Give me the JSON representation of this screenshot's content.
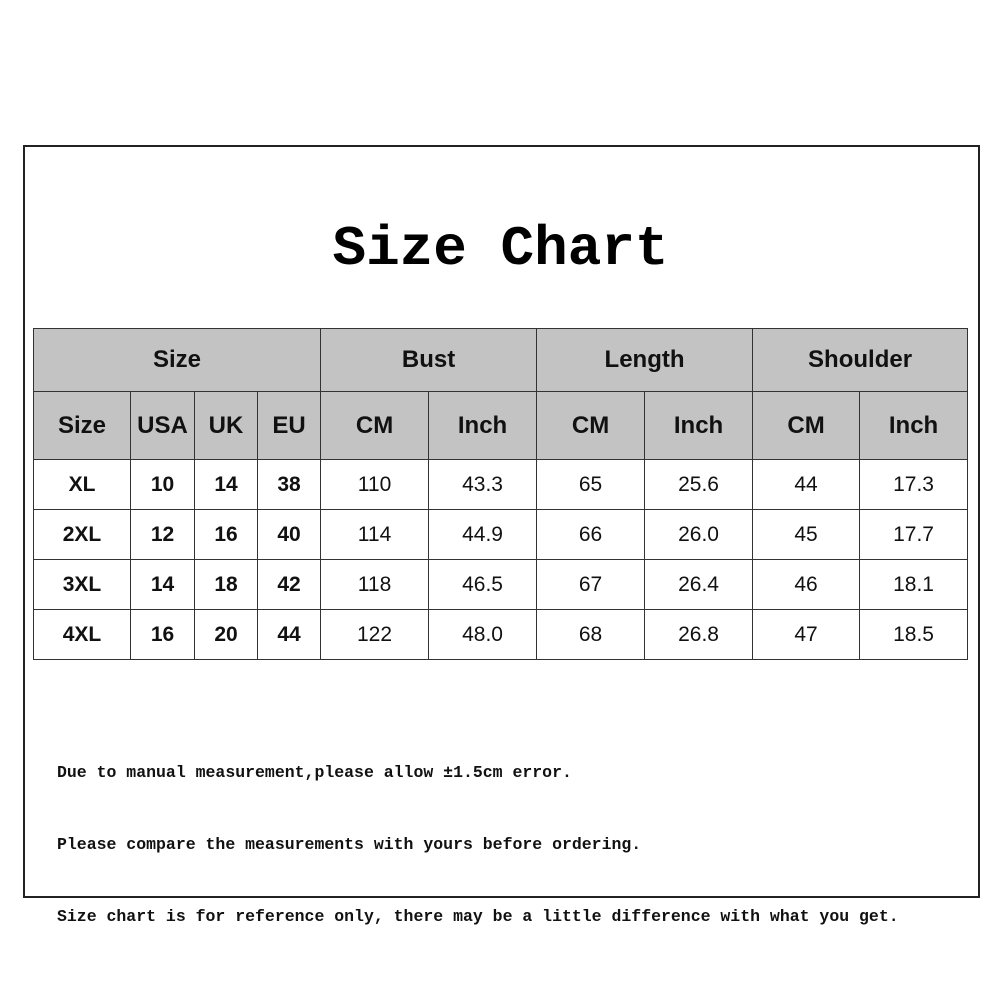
{
  "title": "Size Chart",
  "groups": [
    "Size",
    "Bust",
    "Length",
    "Shoulder"
  ],
  "subheaders": [
    "Size",
    "USA",
    "UK",
    "EU",
    "CM",
    "Inch",
    "CM",
    "Inch",
    "CM",
    "Inch"
  ],
  "rows": [
    [
      "XL",
      "10",
      "14",
      "38",
      "110",
      "43.3",
      "65",
      "25.6",
      "44",
      "17.3"
    ],
    [
      "2XL",
      "12",
      "16",
      "40",
      "114",
      "44.9",
      "66",
      "26.0",
      "45",
      "17.7"
    ],
    [
      "3XL",
      "14",
      "18",
      "42",
      "118",
      "46.5",
      "67",
      "26.4",
      "46",
      "18.1"
    ],
    [
      "4XL",
      "16",
      "20",
      "44",
      "122",
      "48.0",
      "68",
      "26.8",
      "47",
      "18.5"
    ]
  ],
  "notes": [
    "Due to manual measurement,please allow ±1.5cm error.",
    "Please compare the measurements with yours before ordering.",
    "Size chart is for reference only, there may be a little difference with what you get."
  ],
  "colors": {
    "header_bg": "#c3c3c3",
    "border": "#333333"
  }
}
